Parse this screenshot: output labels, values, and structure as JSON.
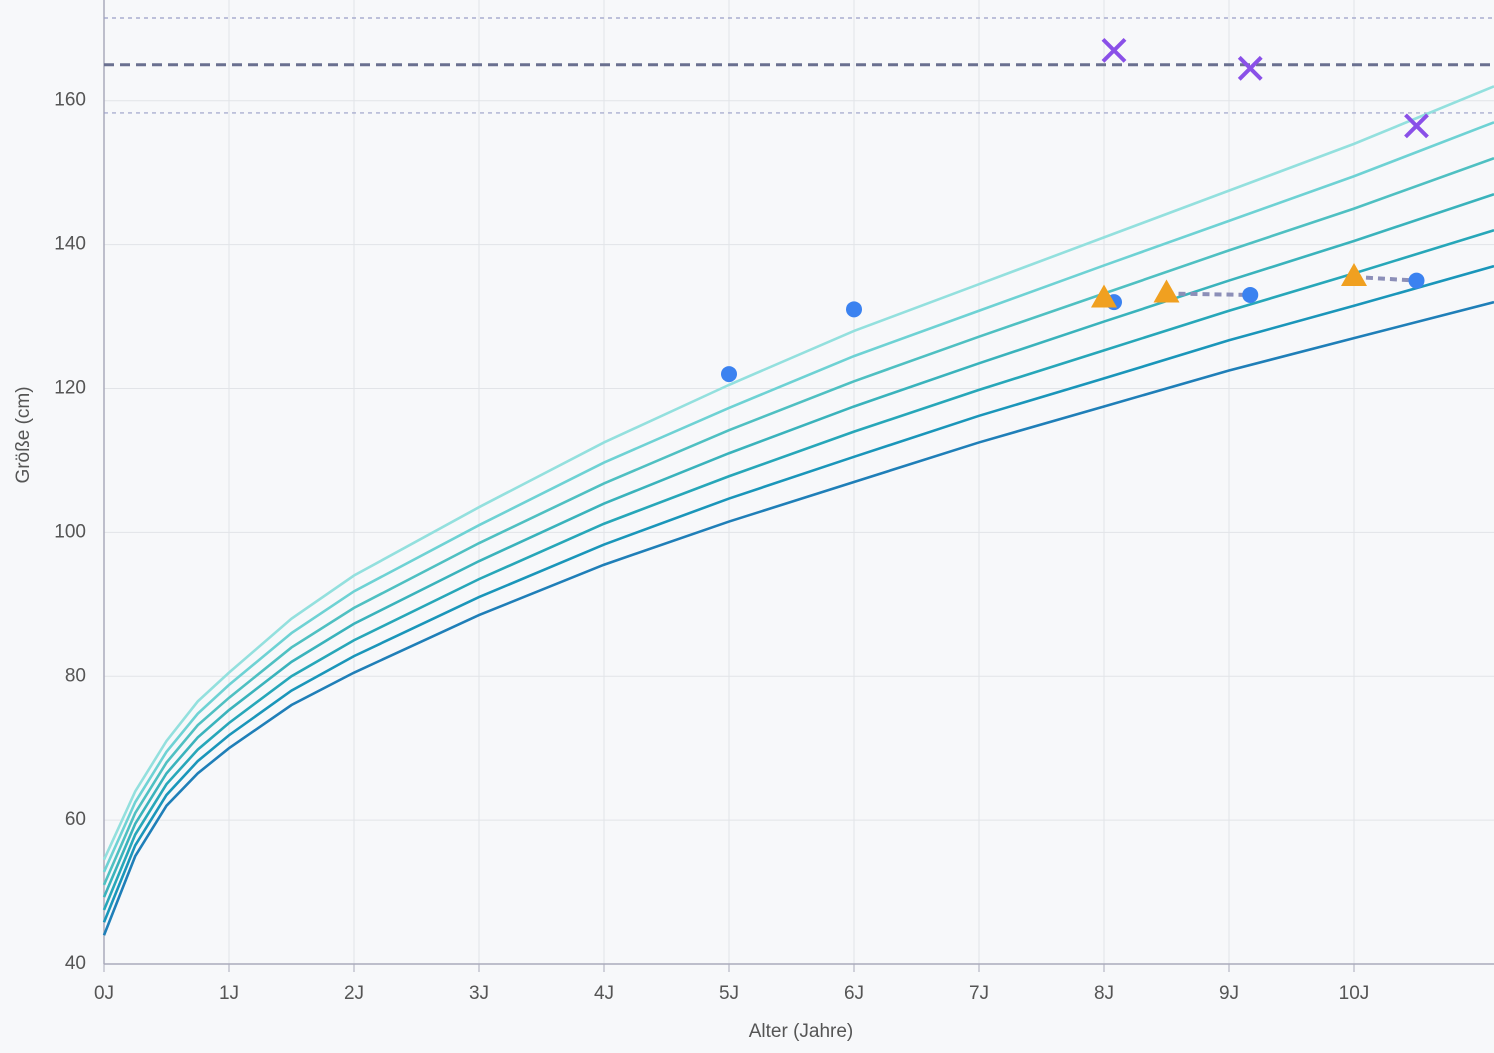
{
  "chart_data": {
    "type": "line",
    "x_label": "Alter (Jahre)",
    "y_label": "Größe (cm)",
    "xlim": [
      0,
      11.12
    ],
    "ylim": [
      40,
      174
    ],
    "xticks": [
      {
        "value": 0,
        "label": "0J"
      },
      {
        "value": 1,
        "label": "1J"
      },
      {
        "value": 2,
        "label": "2J"
      },
      {
        "value": 3,
        "label": "3J"
      },
      {
        "value": 4,
        "label": "4J"
      },
      {
        "value": 5,
        "label": "5J"
      },
      {
        "value": 6,
        "label": "6J"
      },
      {
        "value": 7,
        "label": "7J"
      },
      {
        "value": 8,
        "label": "8J"
      },
      {
        "value": 9,
        "label": "9J"
      },
      {
        "value": 10,
        "label": "10J"
      }
    ],
    "yticks": [
      40,
      60,
      80,
      100,
      120,
      140,
      160
    ],
    "grid": true,
    "x": [
      0,
      0.25,
      0.5,
      0.75,
      1,
      1.5,
      2,
      3,
      4,
      5,
      6,
      7,
      8,
      9,
      10,
      11.12
    ],
    "series": [
      {
        "color": "#1f7fb8",
        "values": [
          44,
          55,
          62,
          66.5,
          70,
          76,
          80.5,
          88.5,
          95.5,
          101.5,
          107,
          112.5,
          117.5,
          122.5,
          127,
          132
        ]
      },
      {
        "color": "#1a96ba",
        "values": [
          45.8,
          56.5,
          63.5,
          68.2,
          71.8,
          78,
          82.8,
          91,
          98.3,
          104.7,
          110.5,
          116.2,
          121.4,
          126.7,
          131.5,
          137
        ]
      },
      {
        "color": "#27a7b9",
        "values": [
          47.5,
          58,
          65,
          69.8,
          73.5,
          80,
          85,
          93.5,
          101.2,
          107.8,
          114,
          119.8,
          125.3,
          130.8,
          136,
          142
        ]
      },
      {
        "color": "#3ab3bc",
        "values": [
          49.3,
          59.5,
          66.5,
          71.5,
          75.3,
          82,
          87.3,
          96,
          104,
          111,
          117.5,
          123.5,
          129.3,
          135,
          140.5,
          147
        ]
      },
      {
        "color": "#4fc0c2",
        "values": [
          51,
          61,
          68,
          73.2,
          77,
          84,
          89.5,
          98.5,
          106.8,
          114.2,
          121,
          127.2,
          133.2,
          139.2,
          145,
          152
        ]
      },
      {
        "color": "#6ed2d4",
        "values": [
          52.8,
          62.5,
          69.5,
          74.8,
          78.8,
          86,
          91.8,
          101,
          109.7,
          117.3,
          124.5,
          130.8,
          137.1,
          143.3,
          149.5,
          157
        ]
      },
      {
        "color": "#93e0de",
        "values": [
          54.5,
          64,
          71,
          76.5,
          80.5,
          88,
          94,
          103.5,
          112.5,
          120.5,
          128,
          134.5,
          141,
          147.5,
          154,
          162
        ]
      }
    ],
    "connectors": [
      {
        "color": "#8c8fb8",
        "x": [
          8.5,
          9.17
        ],
        "values": [
          133.2,
          133
        ]
      },
      {
        "color": "#8c8fb8",
        "x": [
          10,
          10.5
        ],
        "values": [
          135.5,
          135
        ]
      }
    ],
    "points": [
      {
        "marker": "circle",
        "color": "#3b82f0",
        "x": [
          5,
          6,
          8.08,
          9.17,
          10.5
        ],
        "values": [
          122,
          131,
          132,
          133,
          135
        ]
      },
      {
        "marker": "triangle",
        "color": "#f0a020",
        "x": [
          8,
          8.5,
          10
        ],
        "values": [
          132.5,
          133.2,
          135.5
        ]
      },
      {
        "marker": "cross",
        "color": "#8a50e8",
        "x": [
          8.08,
          9.17,
          10.5
        ],
        "values": [
          167,
          164.5,
          156.5
        ]
      }
    ],
    "hlines": [
      {
        "value": 171.5,
        "color": "#9a9fc8",
        "width": 1.2
      },
      {
        "value": 165,
        "color": "#6a7090",
        "width": 3
      },
      {
        "value": 158.3,
        "color": "#9a9fc8",
        "width": 1.2
      }
    ]
  }
}
